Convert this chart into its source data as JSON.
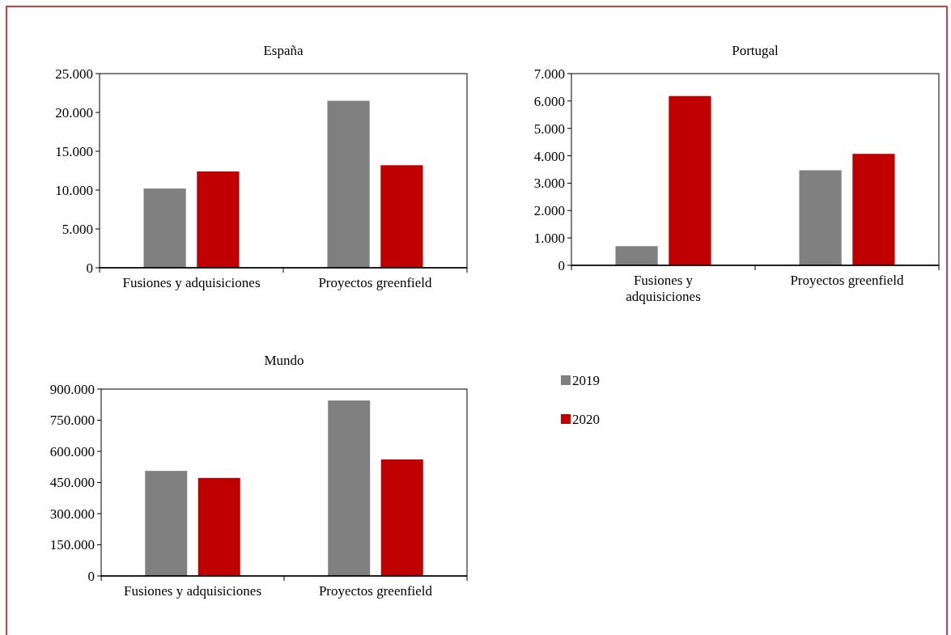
{
  "chart_data": [
    {
      "type": "bar",
      "title": "España",
      "categories": [
        "Fusiones y adquisiciones",
        "Proyectos greenfield"
      ],
      "series": [
        {
          "name": "2019",
          "color": "#808080",
          "values": [
            10200,
            21500
          ]
        },
        {
          "name": "2020",
          "color": "#c00000",
          "values": [
            12400,
            13200
          ]
        }
      ],
      "ylim": [
        0,
        25000
      ],
      "yticks": [
        {
          "value": 0,
          "label": "0"
        },
        {
          "value": 5000,
          "label": "5.000"
        },
        {
          "value": 10000,
          "label": "10.000"
        },
        {
          "value": 15000,
          "label": "15.000"
        },
        {
          "value": 20000,
          "label": "20.000"
        },
        {
          "value": 25000,
          "label": "25.000"
        }
      ],
      "grid": false,
      "legend": "right"
    },
    {
      "type": "bar",
      "title": "Portugal",
      "categories": [
        "Fusiones y adquisiciones",
        "Proyectos greenfield"
      ],
      "series": [
        {
          "name": "2019",
          "color": "#808080",
          "values": [
            700,
            3470
          ]
        },
        {
          "name": "2020",
          "color": "#c00000",
          "values": [
            6180,
            4070
          ]
        }
      ],
      "ylim": [
        0,
        7000
      ],
      "yticks": [
        {
          "value": 0,
          "label": "0"
        },
        {
          "value": 1000,
          "label": "1.000"
        },
        {
          "value": 2000,
          "label": "2.000"
        },
        {
          "value": 3000,
          "label": "3.000"
        },
        {
          "value": 4000,
          "label": "4.000"
        },
        {
          "value": 5000,
          "label": "5.000"
        },
        {
          "value": 6000,
          "label": "6.000"
        },
        {
          "value": 7000,
          "label": "7.000"
        }
      ],
      "grid": false
    },
    {
      "type": "bar",
      "title": "Mundo",
      "categories": [
        "Fusiones y adquisiciones",
        "Proyectos greenfield"
      ],
      "series": [
        {
          "name": "2019",
          "color": "#808080",
          "values": [
            506000,
            845000
          ]
        },
        {
          "name": "2020",
          "color": "#c00000",
          "values": [
            472000,
            561000
          ]
        }
      ],
      "ylim": [
        0,
        900000
      ],
      "yticks": [
        {
          "value": 0,
          "label": "0"
        },
        {
          "value": 150000,
          "label": "150.000"
        },
        {
          "value": 300000,
          "label": "300.000"
        },
        {
          "value": 450000,
          "label": "450.000"
        },
        {
          "value": 600000,
          "label": "600.000"
        },
        {
          "value": 750000,
          "label": "750.000"
        },
        {
          "value": 900000,
          "label": "900.000"
        }
      ],
      "grid": false
    }
  ]
}
